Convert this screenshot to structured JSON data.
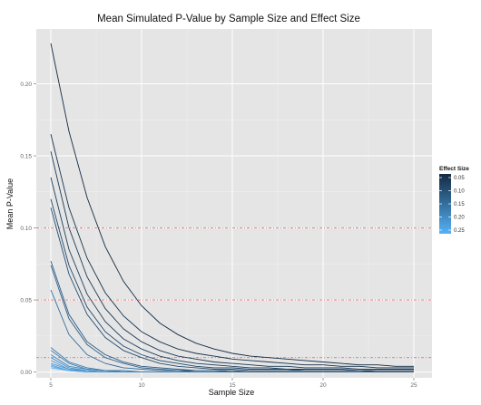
{
  "chart_data": {
    "type": "line",
    "title": "Mean Simulated P-Value by Sample Size and Effect Size",
    "xlabel": "Sample Size",
    "ylabel": "Mean P-Value",
    "xlim": [
      4.2,
      26.0
    ],
    "ylim": [
      -0.004,
      0.238
    ],
    "x_ticks": [
      5,
      10,
      15,
      20,
      25
    ],
    "y_ticks": [
      0.0,
      0.05,
      0.1,
      0.15,
      0.2
    ],
    "y_tick_labels": [
      "0.00",
      "0.05",
      "0.10",
      "0.15",
      "0.20"
    ],
    "grid": true,
    "background": "#e5e5e5",
    "grid_color": "#ffffff",
    "reference_lines": {
      "values": [
        0.01,
        0.05,
        0.1
      ],
      "color": "#f07070",
      "style": "dashed"
    },
    "legend": {
      "title": "Effect Size",
      "position": "right",
      "ticks": [
        0.05,
        0.1,
        0.15,
        0.2,
        0.25
      ],
      "tick_labels": [
        "0.05",
        "0.10",
        "0.15",
        "0.20",
        "0.25"
      ],
      "range": [
        0.05,
        0.25
      ],
      "color_low": "#132b43",
      "color_high": "#56b1f7"
    },
    "x": [
      5,
      6,
      7,
      8,
      9,
      10,
      11,
      12,
      13,
      14,
      15,
      16,
      17,
      18,
      19,
      20,
      21,
      22,
      23,
      24,
      25
    ],
    "series": [
      {
        "effect": 0.05,
        "values": [
          0.228,
          0.167,
          0.121,
          0.087,
          0.063,
          0.046,
          0.034,
          0.026,
          0.02,
          0.016,
          0.013,
          0.011,
          0.01,
          0.009,
          0.008,
          0.007,
          0.006,
          0.005,
          0.005,
          0.004,
          0.004
        ]
      },
      {
        "effect": 0.06,
        "values": [
          0.165,
          0.114,
          0.079,
          0.055,
          0.039,
          0.028,
          0.021,
          0.016,
          0.013,
          0.011,
          0.009,
          0.008,
          0.007,
          0.006,
          0.005,
          0.005,
          0.004,
          0.004,
          0.003,
          0.003,
          0.003
        ]
      },
      {
        "effect": 0.07,
        "values": [
          0.153,
          0.1,
          0.066,
          0.044,
          0.03,
          0.021,
          0.015,
          0.011,
          0.009,
          0.007,
          0.006,
          0.005,
          0.004,
          0.004,
          0.003,
          0.003,
          0.003,
          0.002,
          0.002,
          0.002,
          0.002
        ]
      },
      {
        "effect": 0.08,
        "values": [
          0.135,
          0.085,
          0.054,
          0.035,
          0.023,
          0.016,
          0.011,
          0.008,
          0.006,
          0.005,
          0.004,
          0.003,
          0.003,
          0.002,
          0.002,
          0.002,
          0.002,
          0.001,
          0.001,
          0.001,
          0.001
        ]
      },
      {
        "effect": 0.09,
        "values": [
          0.12,
          0.074,
          0.045,
          0.028,
          0.018,
          0.012,
          0.008,
          0.006,
          0.004,
          0.003,
          0.003,
          0.002,
          0.002,
          0.002,
          0.001,
          0.001,
          0.001,
          0.001,
          0.001,
          0.001,
          0.001
        ]
      },
      {
        "effect": 0.1,
        "values": [
          0.114,
          0.068,
          0.04,
          0.024,
          0.015,
          0.01,
          0.006,
          0.004,
          0.003,
          0.002,
          0.002,
          0.001,
          0.001,
          0.001,
          0.001,
          0.001,
          0.001,
          0.001,
          0.0,
          0.0,
          0.0
        ]
      },
      {
        "effect": 0.12,
        "values": [
          0.077,
          0.04,
          0.021,
          0.012,
          0.007,
          0.004,
          0.003,
          0.002,
          0.001,
          0.001,
          0.001,
          0.0,
          0.0,
          0.0,
          0.0,
          0.0,
          0.0,
          0.0,
          0.0,
          0.0,
          0.0
        ]
      },
      {
        "effect": 0.13,
        "values": [
          0.074,
          0.037,
          0.019,
          0.01,
          0.006,
          0.003,
          0.002,
          0.001,
          0.001,
          0.001,
          0.0,
          0.0,
          0.0,
          0.0,
          0.0,
          0.0,
          0.0,
          0.0,
          0.0,
          0.0,
          0.0
        ]
      },
      {
        "effect": 0.15,
        "values": [
          0.057,
          0.026,
          0.012,
          0.006,
          0.003,
          0.002,
          0.001,
          0.001,
          0.0,
          0.0,
          0.0,
          0.0,
          0.0,
          0.0,
          0.0,
          0.0,
          0.0,
          0.0,
          0.0,
          0.0,
          0.0
        ]
      },
      {
        "effect": 0.17,
        "values": [
          0.017,
          0.007,
          0.003,
          0.001,
          0.001,
          0.0,
          0.0,
          0.0,
          0.0,
          0.0,
          0.0,
          0.0,
          0.0,
          0.0,
          0.0,
          0.0,
          0.0,
          0.0,
          0.0,
          0.0,
          0.0
        ]
      },
      {
        "effect": 0.18,
        "values": [
          0.015,
          0.006,
          0.002,
          0.001,
          0.0,
          0.0,
          0.0,
          0.0,
          0.0,
          0.0,
          0.0,
          0.0,
          0.0,
          0.0,
          0.0,
          0.0,
          0.0,
          0.0,
          0.0,
          0.0,
          0.0
        ]
      },
      {
        "effect": 0.19,
        "values": [
          0.012,
          0.004,
          0.002,
          0.001,
          0.0,
          0.0,
          0.0,
          0.0,
          0.0,
          0.0,
          0.0,
          0.0,
          0.0,
          0.0,
          0.0,
          0.0,
          0.0,
          0.0,
          0.0,
          0.0,
          0.0
        ]
      },
      {
        "effect": 0.2,
        "values": [
          0.01,
          0.003,
          0.001,
          0.0,
          0.0,
          0.0,
          0.0,
          0.0,
          0.0,
          0.0,
          0.0,
          0.0,
          0.0,
          0.0,
          0.0,
          0.0,
          0.0,
          0.0,
          0.0,
          0.0,
          0.0
        ]
      },
      {
        "effect": 0.21,
        "values": [
          0.008,
          0.002,
          0.001,
          0.0,
          0.0,
          0.0,
          0.0,
          0.0,
          0.0,
          0.0,
          0.0,
          0.0,
          0.0,
          0.0,
          0.0,
          0.0,
          0.0,
          0.0,
          0.0,
          0.0,
          0.0
        ]
      },
      {
        "effect": 0.22,
        "values": [
          0.006,
          0.002,
          0.0,
          0.0,
          0.0,
          0.0,
          0.0,
          0.0,
          0.0,
          0.0,
          0.0,
          0.0,
          0.0,
          0.0,
          0.0,
          0.0,
          0.0,
          0.0,
          0.0,
          0.0,
          0.0
        ]
      },
      {
        "effect": 0.23,
        "values": [
          0.005,
          0.001,
          0.0,
          0.0,
          0.0,
          0.0,
          0.0,
          0.0,
          0.0,
          0.0,
          0.0,
          0.0,
          0.0,
          0.0,
          0.0,
          0.0,
          0.0,
          0.0,
          0.0,
          0.0,
          0.0
        ]
      },
      {
        "effect": 0.24,
        "values": [
          0.004,
          0.001,
          0.0,
          0.0,
          0.0,
          0.0,
          0.0,
          0.0,
          0.0,
          0.0,
          0.0,
          0.0,
          0.0,
          0.0,
          0.0,
          0.0,
          0.0,
          0.0,
          0.0,
          0.0,
          0.0
        ]
      },
      {
        "effect": 0.25,
        "values": [
          0.003,
          0.001,
          0.0,
          0.0,
          0.0,
          0.0,
          0.0,
          0.0,
          0.0,
          0.0,
          0.0,
          0.0,
          0.0,
          0.0,
          0.0,
          0.0,
          0.0,
          0.0,
          0.0,
          0.0,
          0.0
        ]
      }
    ]
  }
}
